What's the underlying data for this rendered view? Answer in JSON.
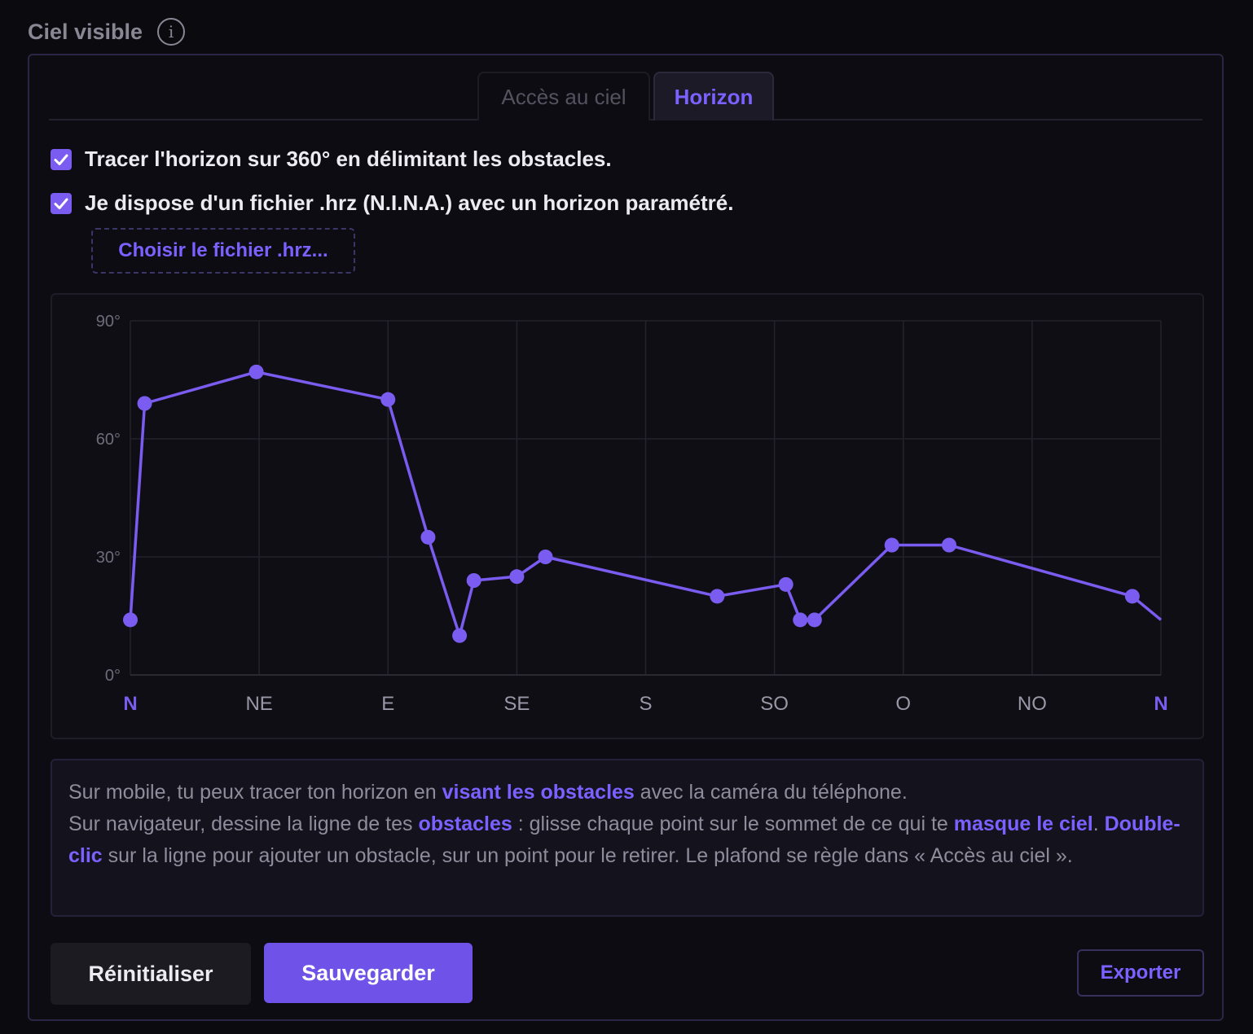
{
  "header": {
    "title": "Ciel visible",
    "info_icon": "info-icon"
  },
  "tabs": [
    {
      "label": "Accès au ciel",
      "active": false
    },
    {
      "label": "Horizon",
      "active": true
    }
  ],
  "options": [
    {
      "label": "Tracer l'horizon sur 360° en délimitant les obstacles.",
      "checked": true
    },
    {
      "label": "Je dispose d'un fichier .hrz (N.I.N.A.) avec un horizon paramétré.",
      "checked": true
    }
  ],
  "file_button": {
    "label": "Choisir le fichier .hrz..."
  },
  "chart_data": {
    "type": "line",
    "x_ticks": [
      "N",
      "NE",
      "E",
      "SE",
      "S",
      "SO",
      "O",
      "NO",
      "N"
    ],
    "x_range": [
      0,
      360
    ],
    "y_ticks": [
      "90°",
      "60°",
      "30°",
      "0°"
    ],
    "ylim": [
      0,
      90
    ],
    "grid": true,
    "series": [
      {
        "color": "#7b5cf0",
        "points": [
          [
            0,
            14
          ],
          [
            5,
            69
          ],
          [
            44,
            77
          ],
          [
            90,
            70
          ],
          [
            104,
            35
          ],
          [
            115,
            10
          ],
          [
            120,
            24
          ],
          [
            135,
            25
          ],
          [
            145,
            30
          ],
          [
            205,
            20
          ],
          [
            229,
            23
          ],
          [
            234,
            14
          ],
          [
            239,
            14
          ],
          [
            266,
            33
          ],
          [
            286,
            33
          ],
          [
            350,
            20
          ]
        ],
        "line_end": [
          360,
          14
        ]
      }
    ]
  },
  "help": {
    "l1_pre": "Sur mobile, tu peux tracer ton horizon en ",
    "l1_hl": "visant les obstacles",
    "l1_post": " avec la caméra du téléphone.",
    "l2_pre": "Sur navigateur, dessine la ligne de tes ",
    "l2_hl1": "obstacles",
    "l2_mid": " : glisse chaque point sur le sommet de ce qui te ",
    "l2_hl2": "masque le ciel",
    "l2_dot": ". ",
    "l2_hl3": "Double-clic",
    "l2_post": " sur la ligne pour ajouter un obstacle, sur un point pour le retirer. Le plafond se règle dans « Accès au ciel »."
  },
  "actions": {
    "reset": "Réinitialiser",
    "save": "Sauvegarder",
    "export": "Exporter"
  },
  "colors": {
    "accent": "#7b5cf0",
    "background": "#0b0a0f"
  }
}
